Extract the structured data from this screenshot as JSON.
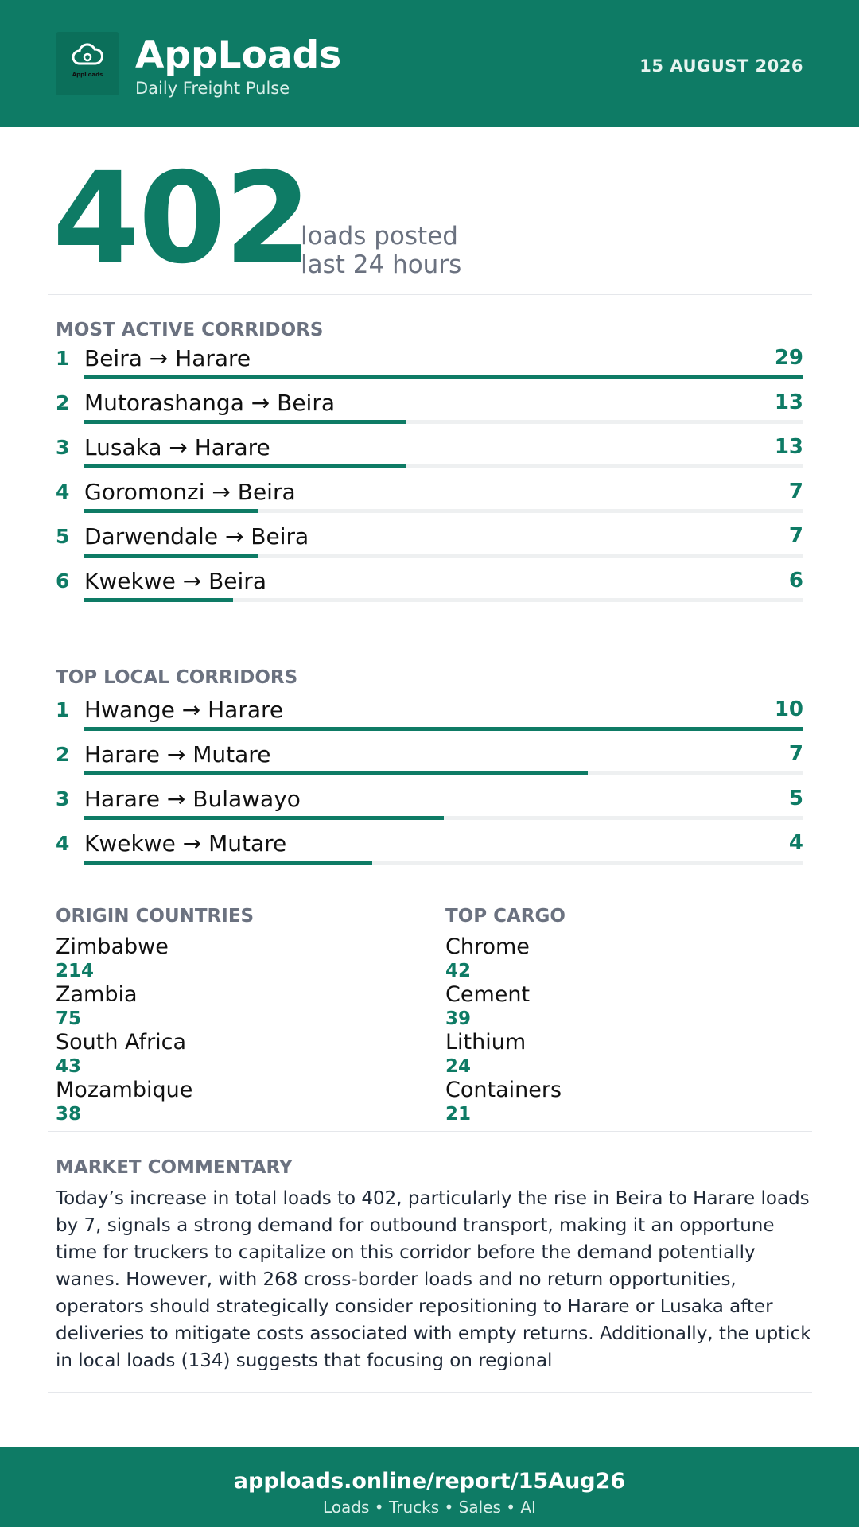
{
  "header": {
    "logo_text": "AppLoads",
    "brand": "AppLoads",
    "tagline": "Daily Freight Pulse",
    "date": "15 AUGUST 2026"
  },
  "hero": {
    "value": 402,
    "label_lines": [
      "loads posted",
      "last 24 hours"
    ]
  },
  "most_active": {
    "title": "MOST ACTIVE CORRIDORS",
    "items": [
      {
        "rank": 1,
        "route": "Beira → Harare",
        "value": 29
      },
      {
        "rank": 2,
        "route": "Mutorashanga → Beira",
        "value": 13
      },
      {
        "rank": 3,
        "route": "Lusaka → Harare",
        "value": 13
      },
      {
        "rank": 4,
        "route": "Goromonzi → Beira",
        "value": 7
      },
      {
        "rank": 5,
        "route": "Darwendale → Beira",
        "value": 7
      },
      {
        "rank": 6,
        "route": "Kwekwe → Beira",
        "value": 6
      }
    ]
  },
  "top_local": {
    "title": "TOP LOCAL CORRIDORS",
    "items": [
      {
        "rank": 1,
        "route": "Hwange → Harare",
        "value": 10
      },
      {
        "rank": 2,
        "route": "Harare → Mutare",
        "value": 7
      },
      {
        "rank": 3,
        "route": "Harare → Bulawayo",
        "value": 5
      },
      {
        "rank": 4,
        "route": "Kwekwe → Mutare",
        "value": 4
      }
    ]
  },
  "origin_countries": {
    "title": "ORIGIN COUNTRIES",
    "items": [
      {
        "name": "Zimbabwe",
        "value": 214
      },
      {
        "name": "Zambia",
        "value": 75
      },
      {
        "name": "South Africa",
        "value": 43
      },
      {
        "name": "Mozambique",
        "value": 38
      }
    ]
  },
  "top_cargo": {
    "title": "TOP CARGO",
    "items": [
      {
        "name": "Chrome",
        "value": 42
      },
      {
        "name": "Cement",
        "value": 39
      },
      {
        "name": "Lithium",
        "value": 24
      },
      {
        "name": "Containers",
        "value": 21
      }
    ]
  },
  "commentary": {
    "title": "MARKET COMMENTARY",
    "text": "Today’s increase in total loads to 402, particularly the rise in Beira to Harare loads by 7, signals a strong demand for outbound transport, making it an opportune time for truckers to capitalize on this corridor before the demand potentially wanes. However, with 268 cross-border loads and no return opportunities, operators should strategically consider repositioning to Harare or Lusaka after deliveries to mitigate costs associated with empty returns. Additionally, the uptick in local loads (134) suggests that focusing on regional"
  },
  "footer": {
    "url": "apploads.online/report/15Aug26",
    "tagline": "Loads • Trucks • Sales • AI"
  }
}
